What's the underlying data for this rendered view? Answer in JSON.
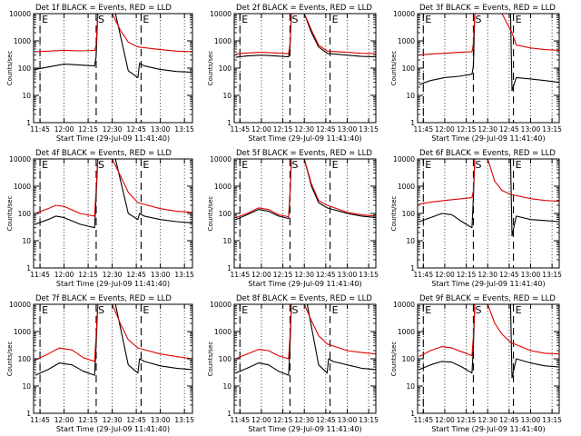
{
  "page": {
    "y_tick_labels": [
      "1",
      "10",
      "100",
      "1000",
      "10000"
    ],
    "x_tick_labels": [
      "11:45",
      "12:00",
      "12:15",
      "12:30",
      "12:45",
      "13:00",
      "13:15"
    ],
    "ylabel": "Counts/sec",
    "xlabel": "Start Time (29-Jul-09 11:41:40)",
    "marker_labels": [
      "E",
      "S",
      "E"
    ]
  },
  "colors": {
    "events": "#000000",
    "lld": "#dd0000",
    "axes": "#000000"
  },
  "chart_data": [
    {
      "type": "line",
      "title": "Det 1f BLACK = Events, RED = LLD",
      "xlabel": "Start Time (29-Jul-09 11:41:40)",
      "ylabel": "Counts/sec",
      "y_scale": "log",
      "ylim": [
        1,
        10000
      ],
      "xlim": [
        "11:41",
        "13:20"
      ],
      "markers": [
        {
          "label": "E",
          "x": "11:45"
        },
        {
          "label": "S",
          "x": "12:20"
        },
        {
          "label": "E",
          "x": "12:48"
        }
      ],
      "series": [
        {
          "name": "Events",
          "color": "#000000",
          "x": [
            "11:42",
            "11:50",
            "12:00",
            "12:10",
            "12:19",
            "12:20",
            "12:21",
            "12:25",
            "12:30",
            "12:32",
            "12:40",
            "12:46",
            "12:47",
            "12:50",
            "13:00",
            "13:10",
            "13:20"
          ],
          "y": [
            90,
            110,
            140,
            130,
            120,
            260,
            10000,
            10000,
            10000,
            10000,
            80,
            45,
            150,
            120,
            90,
            75,
            70
          ]
        },
        {
          "name": "LLD",
          "color": "#dd0000",
          "x": [
            "11:42",
            "11:50",
            "12:00",
            "12:10",
            "12:19",
            "12:20",
            "12:21",
            "12:25",
            "12:30",
            "12:35",
            "12:40",
            "12:46",
            "13:00",
            "13:10",
            "13:20"
          ],
          "y": [
            400,
            420,
            450,
            430,
            450,
            700,
            10000,
            10000,
            10000,
            2500,
            900,
            600,
            480,
            420,
            400
          ]
        }
      ]
    },
    {
      "type": "line",
      "title": "Det 2f BLACK = Events, RED = LLD",
      "xlabel": "Start Time (29-Jul-09 11:41:40)",
      "ylabel": "Counts/sec",
      "y_scale": "log",
      "ylim": [
        1,
        10000
      ],
      "xlim": [
        "11:41",
        "13:20"
      ],
      "markers": [
        {
          "label": "E",
          "x": "11:45"
        },
        {
          "label": "S",
          "x": "12:20"
        },
        {
          "label": "E",
          "x": "12:48"
        }
      ],
      "series": [
        {
          "name": "Events",
          "color": "#000000",
          "x": [
            "11:42",
            "11:50",
            "12:00",
            "12:10",
            "12:19",
            "12:20",
            "12:21",
            "12:25",
            "12:30",
            "12:35",
            "12:40",
            "12:46",
            "13:00",
            "13:10",
            "13:20"
          ],
          "y": [
            250,
            280,
            300,
            280,
            260,
            600,
            10000,
            10000,
            10000,
            2000,
            600,
            350,
            300,
            270,
            260
          ]
        },
        {
          "name": "LLD",
          "color": "#dd0000",
          "x": [
            "11:42",
            "11:50",
            "12:00",
            "12:10",
            "12:19",
            "12:20",
            "12:21",
            "12:25",
            "12:30",
            "12:35",
            "12:40",
            "12:46",
            "13:00",
            "13:10",
            "13:20"
          ],
          "y": [
            330,
            360,
            380,
            360,
            340,
            800,
            10000,
            10000,
            10000,
            2500,
            700,
            420,
            380,
            350,
            340
          ]
        }
      ]
    },
    {
      "type": "line",
      "title": "Det 3f BLACK = Events, RED = LLD",
      "xlabel": "Start Time (29-Jul-09 11:41:40)",
      "ylabel": "Counts/sec",
      "y_scale": "log",
      "ylim": [
        1,
        10000
      ],
      "xlim": [
        "11:41",
        "13:20"
      ],
      "markers": [
        {
          "label": "E",
          "x": "11:45"
        },
        {
          "label": "S",
          "x": "12:20"
        },
        {
          "label": "E",
          "x": "12:48"
        }
      ],
      "series": [
        {
          "name": "Events",
          "color": "#000000",
          "x": [
            "11:42",
            "11:50",
            "12:00",
            "12:10",
            "12:19",
            "12:20",
            "12:21",
            "12:25",
            "12:30",
            "12:40",
            "12:46",
            "12:47",
            "12:50",
            "13:00",
            "13:10",
            "13:20"
          ],
          "y": [
            25,
            35,
            45,
            50,
            60,
            120,
            10000,
            10000,
            10000,
            10000,
            10000,
            15,
            45,
            40,
            35,
            30
          ]
        },
        {
          "name": "LLD",
          "color": "#dd0000",
          "x": [
            "11:42",
            "11:50",
            "12:00",
            "12:10",
            "12:19",
            "12:20",
            "12:21",
            "12:25",
            "12:30",
            "12:40",
            "12:47",
            "12:50",
            "13:00",
            "13:10",
            "13:20"
          ],
          "y": [
            300,
            330,
            350,
            380,
            400,
            800,
            10000,
            10000,
            10000,
            10000,
            2000,
            700,
            550,
            480,
            450
          ]
        }
      ]
    },
    {
      "type": "line",
      "title": "Det 4f BLACK = Events, RED = LLD",
      "xlabel": "Start Time (29-Jul-09 11:41:40)",
      "ylabel": "Counts/sec",
      "y_scale": "log",
      "ylim": [
        1,
        10000
      ],
      "xlim": [
        "11:41",
        "13:20"
      ],
      "markers": [
        {
          "label": "E",
          "x": "11:45"
        },
        {
          "label": "S",
          "x": "12:20"
        },
        {
          "label": "E",
          "x": "12:48"
        }
      ],
      "series": [
        {
          "name": "Events",
          "color": "#000000",
          "x": [
            "11:42",
            "11:50",
            "11:55",
            "12:00",
            "12:10",
            "12:19",
            "12:20",
            "12:21",
            "12:25",
            "12:30",
            "12:32",
            "12:40",
            "12:46",
            "12:47",
            "12:50",
            "13:00",
            "13:10",
            "13:20"
          ],
          "y": [
            40,
            60,
            80,
            70,
            40,
            30,
            400,
            10000,
            10000,
            10000,
            10000,
            100,
            60,
            100,
            80,
            60,
            50,
            45
          ]
        },
        {
          "name": "LLD",
          "color": "#dd0000",
          "x": [
            "11:42",
            "11:50",
            "11:55",
            "12:00",
            "12:10",
            "12:19",
            "12:20",
            "12:21",
            "12:25",
            "12:30",
            "12:35",
            "12:40",
            "12:46",
            "13:00",
            "13:10",
            "13:20"
          ],
          "y": [
            100,
            150,
            200,
            180,
            100,
            80,
            800,
            10000,
            10000,
            10000,
            2500,
            600,
            250,
            150,
            120,
            110
          ]
        }
      ]
    },
    {
      "type": "line",
      "title": "Det 5f BLACK = Events, RED = LLD",
      "xlabel": "Start Time (29-Jul-09 11:41:40)",
      "ylabel": "Counts/sec",
      "y_scale": "log",
      "ylim": [
        1,
        10000
      ],
      "xlim": [
        "11:41",
        "13:20"
      ],
      "markers": [
        {
          "label": "E",
          "x": "11:45"
        },
        {
          "label": "S",
          "x": "12:20"
        },
        {
          "label": "E",
          "x": "12:48"
        }
      ],
      "series": [
        {
          "name": "Events",
          "color": "#000000",
          "x": [
            "11:42",
            "11:50",
            "11:58",
            "12:05",
            "12:12",
            "12:19",
            "12:20",
            "12:21",
            "12:25",
            "12:30",
            "12:35",
            "12:40",
            "12:46",
            "13:00",
            "13:10",
            "13:20"
          ],
          "y": [
            60,
            90,
            140,
            120,
            80,
            65,
            500,
            10000,
            10000,
            10000,
            1000,
            250,
            160,
            100,
            80,
            70
          ]
        },
        {
          "name": "LLD",
          "color": "#dd0000",
          "x": [
            "11:42",
            "11:50",
            "11:58",
            "12:05",
            "12:12",
            "12:19",
            "12:20",
            "12:21",
            "12:25",
            "12:30",
            "12:35",
            "12:40",
            "12:46",
            "13:00",
            "13:10",
            "13:20"
          ],
          "y": [
            70,
            100,
            160,
            140,
            90,
            75,
            600,
            10000,
            10000,
            10000,
            1200,
            300,
            200,
            110,
            90,
            80
          ]
        }
      ]
    },
    {
      "type": "line",
      "title": "Det 6f BLACK = Events, RED = LLD",
      "xlabel": "Start Time (29-Jul-09 11:41:40)",
      "ylabel": "Counts/sec",
      "y_scale": "log",
      "ylim": [
        1,
        10000
      ],
      "xlim": [
        "11:41",
        "13:20"
      ],
      "markers": [
        {
          "label": "E",
          "x": "11:45"
        },
        {
          "label": "S",
          "x": "12:20"
        },
        {
          "label": "E",
          "x": "12:48"
        }
      ],
      "series": [
        {
          "name": "Events",
          "color": "#000000",
          "x": [
            "11:42",
            "11:50",
            "11:58",
            "12:05",
            "12:12",
            "12:19",
            "12:20",
            "12:21",
            "12:25",
            "12:30",
            "12:40",
            "12:46",
            "12:47",
            "12:50",
            "13:00",
            "13:10",
            "13:20"
          ],
          "y": [
            50,
            70,
            100,
            90,
            50,
            30,
            400,
            10000,
            10000,
            10000,
            10000,
            10000,
            15,
            80,
            60,
            55,
            50
          ]
        },
        {
          "name": "LLD",
          "color": "#dd0000",
          "x": [
            "11:42",
            "11:50",
            "12:00",
            "12:10",
            "12:19",
            "12:20",
            "12:21",
            "12:25",
            "12:30",
            "12:35",
            "12:40",
            "12:46",
            "13:00",
            "13:10",
            "13:20"
          ],
          "y": [
            220,
            260,
            300,
            340,
            380,
            700,
            10000,
            10000,
            10000,
            1500,
            700,
            500,
            350,
            300,
            280
          ]
        }
      ]
    },
    {
      "type": "line",
      "title": "Det 7f BLACK = Events, RED = LLD",
      "xlabel": "Start Time (29-Jul-09 11:41:40)",
      "ylabel": "Counts/sec",
      "y_scale": "log",
      "ylim": [
        1,
        10000
      ],
      "xlim": [
        "11:41",
        "13:20"
      ],
      "markers": [
        {
          "label": "E",
          "x": "11:45"
        },
        {
          "label": "S",
          "x": "12:20"
        },
        {
          "label": "E",
          "x": "12:48"
        }
      ],
      "series": [
        {
          "name": "Events",
          "color": "#000000",
          "x": [
            "11:42",
            "11:50",
            "11:57",
            "12:05",
            "12:12",
            "12:19",
            "12:20",
            "12:21",
            "12:25",
            "12:30",
            "12:32",
            "12:40",
            "12:46",
            "12:47",
            "12:50",
            "13:00",
            "13:10",
            "13:20"
          ],
          "y": [
            25,
            40,
            70,
            60,
            35,
            25,
            300,
            10000,
            10000,
            10000,
            10000,
            60,
            30,
            100,
            80,
            55,
            45,
            40
          ]
        },
        {
          "name": "LLD",
          "color": "#dd0000",
          "x": [
            "11:42",
            "11:50",
            "11:57",
            "12:05",
            "12:12",
            "12:19",
            "12:20",
            "12:21",
            "12:25",
            "12:30",
            "12:35",
            "12:40",
            "12:46",
            "13:00",
            "13:10",
            "13:20"
          ],
          "y": [
            90,
            150,
            250,
            210,
            110,
            80,
            700,
            10000,
            10000,
            10000,
            2000,
            500,
            250,
            150,
            120,
            100
          ]
        }
      ]
    },
    {
      "type": "line",
      "title": "Det 8f BLACK = Events, RED = LLD",
      "xlabel": "Start Time (29-Jul-09 11:41:40)",
      "ylabel": "Counts/sec",
      "y_scale": "log",
      "ylim": [
        1,
        10000
      ],
      "xlim": [
        "11:41",
        "13:20"
      ],
      "markers": [
        {
          "label": "E",
          "x": "11:45"
        },
        {
          "label": "S",
          "x": "12:20"
        },
        {
          "label": "E",
          "x": "12:48"
        }
      ],
      "series": [
        {
          "name": "Events",
          "color": "#000000",
          "x": [
            "11:42",
            "11:50",
            "11:58",
            "12:05",
            "12:12",
            "12:19",
            "12:20",
            "12:21",
            "12:25",
            "12:30",
            "12:32",
            "12:40",
            "12:46",
            "12:47",
            "12:50",
            "13:00",
            "13:10",
            "13:20"
          ],
          "y": [
            30,
            45,
            70,
            60,
            35,
            25,
            300,
            10000,
            10000,
            10000,
            10000,
            60,
            30,
            100,
            80,
            60,
            45,
            40
          ]
        },
        {
          "name": "LLD",
          "color": "#dd0000",
          "x": [
            "11:42",
            "11:50",
            "11:58",
            "12:05",
            "12:12",
            "12:19",
            "12:20",
            "12:21",
            "12:25",
            "12:30",
            "12:35",
            "12:40",
            "12:46",
            "13:00",
            "13:10",
            "13:20"
          ],
          "y": [
            100,
            150,
            220,
            200,
            130,
            100,
            700,
            10000,
            10000,
            10000,
            2500,
            700,
            350,
            200,
            170,
            150
          ]
        }
      ]
    },
    {
      "type": "line",
      "title": "Det 9f BLACK = Events, RED = LLD",
      "xlabel": "Start Time (29-Jul-09 11:41:40)",
      "ylabel": "Counts/sec",
      "y_scale": "log",
      "ylim": [
        1,
        10000
      ],
      "xlim": [
        "11:41",
        "13:20"
      ],
      "markers": [
        {
          "label": "E",
          "x": "11:45"
        },
        {
          "label": "S",
          "x": "12:20"
        },
        {
          "label": "E",
          "x": "12:48"
        }
      ],
      "series": [
        {
          "name": "Events",
          "color": "#000000",
          "x": [
            "11:42",
            "11:50",
            "11:58",
            "12:05",
            "12:12",
            "12:19",
            "12:20",
            "12:21",
            "12:25",
            "12:30",
            "12:40",
            "12:46",
            "12:47",
            "12:50",
            "13:00",
            "13:10",
            "13:20"
          ],
          "y": [
            40,
            60,
            80,
            75,
            50,
            30,
            300,
            10000,
            10000,
            10000,
            10000,
            10000,
            20,
            100,
            70,
            55,
            50
          ]
        },
        {
          "name": "LLD",
          "color": "#dd0000",
          "x": [
            "11:42",
            "11:50",
            "11:58",
            "12:05",
            "12:12",
            "12:19",
            "12:20",
            "12:21",
            "12:25",
            "12:30",
            "12:35",
            "12:40",
            "12:46",
            "13:00",
            "13:10",
            "13:20"
          ],
          "y": [
            120,
            200,
            280,
            250,
            180,
            130,
            700,
            10000,
            10000,
            10000,
            2000,
            800,
            400,
            200,
            160,
            150
          ]
        }
      ]
    }
  ]
}
